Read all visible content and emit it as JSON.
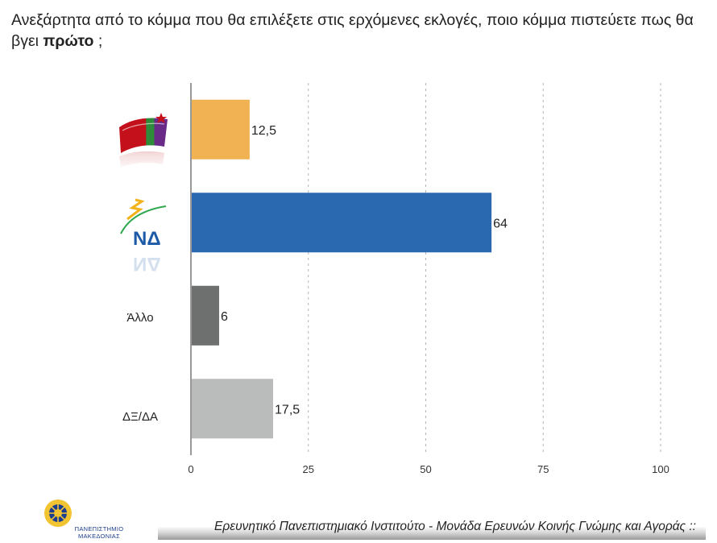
{
  "question": {
    "prefix": "Ανεξάρτητα από το κόμμα που θα επιλέξετε στις ερχόμενες εκλογές, ποιο κόμμα πιστεύετε πως θα βγει ",
    "bold": "πρώτο",
    "suffix": " ;"
  },
  "chart_data": {
    "type": "bar",
    "orientation": "horizontal",
    "categories": [
      "ΣΥΡΙΖΑ",
      "ΝΔ",
      "Άλλο",
      "ΔΞ/ΔΑ"
    ],
    "category_display": [
      {
        "kind": "logo",
        "logo": "syriza-logo"
      },
      {
        "kind": "logo",
        "logo": "nd-logo",
        "text": "ΝΔ"
      },
      {
        "kind": "text",
        "text": "Άλλο"
      },
      {
        "kind": "text",
        "text": "ΔΞ/ΔΑ"
      }
    ],
    "values": [
      12.5,
      64,
      6,
      17.5
    ],
    "value_labels": [
      "12,5",
      "64",
      "6",
      "17,5"
    ],
    "colors": [
      "#f0b252",
      "#2a69b0",
      "#6d706e",
      "#b9bcba"
    ],
    "xlim": [
      0,
      100
    ],
    "xticks": [
      0,
      25,
      50,
      75,
      100
    ],
    "xtick_labels": [
      "0",
      "25",
      "50",
      "75",
      "100"
    ],
    "grid": "vertical dashed",
    "title": "",
    "xlabel": "",
    "ylabel": ""
  },
  "footer": {
    "text": "Ερευνητικό Πανεπιστημιακό Ινστιτούτο - Μονάδα Ερευνών Κοινής Γνώμης και Αγοράς ::",
    "university_name": "ΠΑΝΕΠΙΣΤΗΜΙΟ ΜΑΚΕΔΟΝΙΑΣ"
  }
}
